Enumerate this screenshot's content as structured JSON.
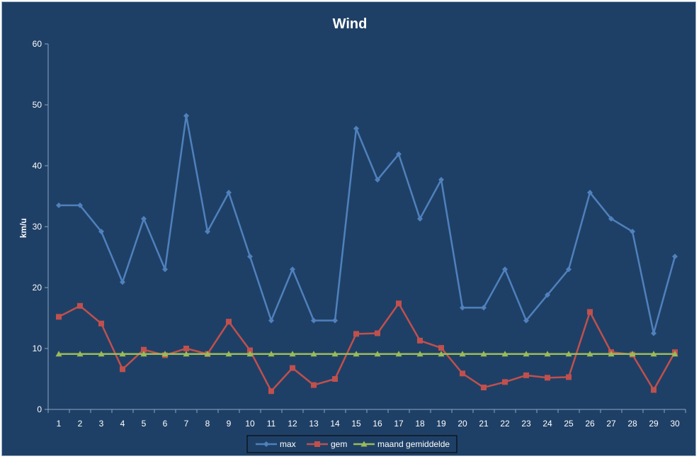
{
  "chart_data": {
    "type": "line",
    "title": "Wind",
    "xlabel": "",
    "ylabel": "km/u",
    "ylim": [
      0,
      60
    ],
    "yticks": [
      0,
      10,
      20,
      30,
      40,
      50,
      60
    ],
    "grid": false,
    "legend_position": "bottom",
    "categories": [
      "1",
      "2",
      "3",
      "4",
      "5",
      "6",
      "7",
      "8",
      "9",
      "10",
      "11",
      "12",
      "13",
      "14",
      "15",
      "16",
      "17",
      "18",
      "19",
      "20",
      "21",
      "22",
      "23",
      "24",
      "25",
      "26",
      "27",
      "28",
      "29",
      "30"
    ],
    "series": [
      {
        "name": "max",
        "color": "#4f81bd",
        "marker": "diamond",
        "values": [
          33.5,
          33.5,
          29.2,
          20.9,
          31.3,
          23.0,
          48.2,
          29.2,
          35.6,
          25.1,
          14.6,
          23.0,
          14.6,
          14.6,
          46.1,
          37.7,
          41.9,
          31.3,
          37.7,
          16.7,
          16.7,
          23.0,
          14.6,
          18.8,
          23.0,
          35.6,
          31.3,
          29.2,
          12.5,
          25.1
        ]
      },
      {
        "name": "gem",
        "color": "#c0504d",
        "marker": "square",
        "values": [
          15.2,
          17.0,
          14.1,
          6.6,
          9.8,
          8.9,
          10.0,
          9.1,
          14.4,
          9.7,
          3.0,
          6.8,
          4.0,
          5.0,
          12.4,
          12.5,
          17.4,
          11.3,
          10.1,
          5.9,
          3.6,
          4.5,
          5.6,
          5.2,
          5.3,
          16.0,
          9.4,
          9.0,
          3.2,
          9.4
        ]
      },
      {
        "name": "maand gemiddelde",
        "color": "#9bbb59",
        "marker": "triangle",
        "values": [
          9.1,
          9.1,
          9.1,
          9.1,
          9.1,
          9.1,
          9.1,
          9.1,
          9.1,
          9.1,
          9.1,
          9.1,
          9.1,
          9.1,
          9.1,
          9.1,
          9.1,
          9.1,
          9.1,
          9.1,
          9.1,
          9.1,
          9.1,
          9.1,
          9.1,
          9.1,
          9.1,
          9.1,
          9.1,
          9.1
        ]
      }
    ]
  }
}
